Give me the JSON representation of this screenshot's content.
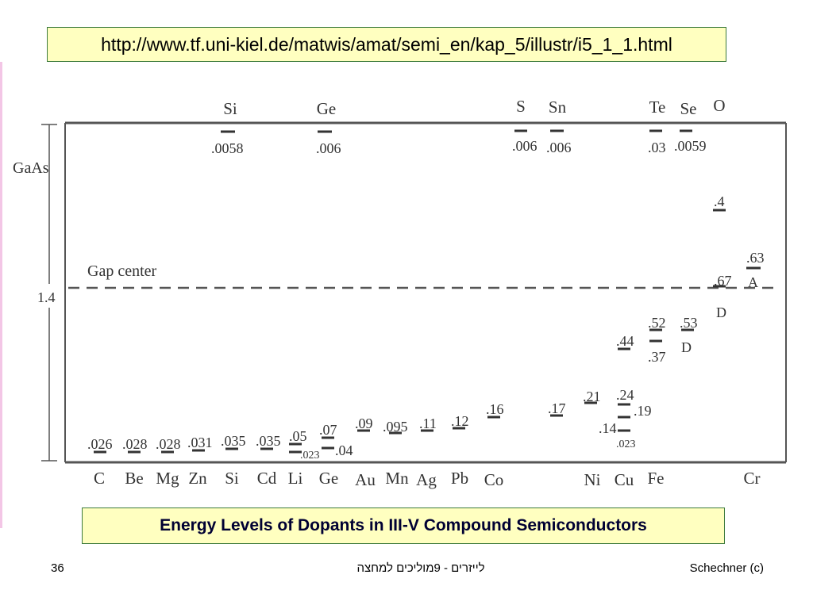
{
  "header": {
    "url": "http://www.tf.uni-kiel.de/matwis/amat/semi_en/kap_5/illustr/i5_1_1.html"
  },
  "diagram": {
    "material": "GaAs",
    "gap_value": "1.4",
    "gap_center_label": "Gap center",
    "top_elements": [
      "Si",
      "Ge",
      "S",
      "Sn",
      "Te",
      "Se",
      "O"
    ],
    "bottom_elements": [
      "C",
      "Be",
      "Mg",
      "Zn",
      "Si",
      "Cd",
      "Li",
      "Ge",
      "Au",
      "Mn",
      "Ag",
      "Pb",
      "Co",
      "Ni",
      "Cu",
      "Fe",
      "Cr"
    ],
    "labels": [
      ".0058",
      ".006",
      ".006",
      ".006",
      ".03",
      ".0059",
      ".4",
      ".67",
      "D",
      ".63",
      "A",
      ".52",
      ".37",
      ".53",
      "D",
      ".44",
      ".24",
      ".19",
      ".14",
      ".023",
      ".21",
      ".17",
      ".16",
      ".12",
      ".11",
      ".095",
      ".09",
      ".07",
      ".04",
      ".05",
      ".023",
      ".035",
      ".035",
      ".031",
      ".028",
      ".028",
      ".026"
    ]
  },
  "caption": "Energy Levels of Dopants in III-V Compound Semiconductors",
  "footer": {
    "page_number": "36",
    "course": "לייזרים - 9מוליכים למחצה",
    "author": "Schechner (c)"
  },
  "colors": {
    "box_fill": "#ffffc0",
    "box_border": "#3c7a3c",
    "caption_text": "#000033",
    "accent_line": "#f3c6e6"
  }
}
